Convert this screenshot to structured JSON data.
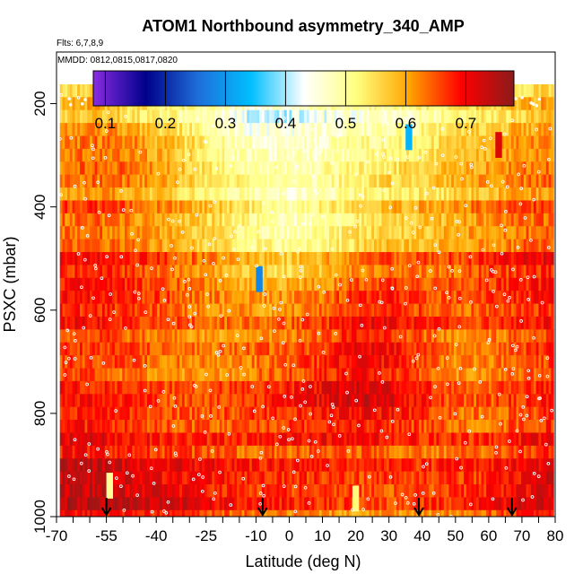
{
  "chart_data": {
    "type": "heatmap",
    "title": "ATOM1 Northbound asymmetry_340_AMP",
    "flights_label": "Flts: 6,7,8,9",
    "dates_label": "MMDD: 0812,0815,0817,0820",
    "xlabel": "Latitude (deg N)",
    "ylabel": "PSXC (mbar)",
    "xlim": [
      -70,
      80
    ],
    "ylim": [
      1000,
      100
    ],
    "x_tick_labels": [
      "-70",
      "-55",
      "-40",
      "-25",
      "-10",
      "0",
      "10",
      "20",
      "30",
      "40",
      "50",
      "60",
      "70",
      "80"
    ],
    "x_tick_values": [
      -70,
      -55,
      -40,
      -25,
      -10,
      0,
      10,
      20,
      30,
      40,
      50,
      60,
      70,
      80
    ],
    "x_minor_ticks": [
      -65,
      -60,
      -50,
      -45,
      -35,
      -30,
      -20,
      -15,
      -5,
      5,
      15,
      25,
      35,
      45,
      55,
      65,
      75
    ],
    "y_tick_labels": [
      "200",
      "400",
      "600",
      "800",
      "1000"
    ],
    "y_tick_values": [
      200,
      400,
      600,
      800,
      1000
    ],
    "colorbar": {
      "range": [
        0.08,
        0.78
      ],
      "tick_labels": [
        "0.1",
        "0.2",
        "0.3",
        "0.4",
        "0.5",
        "0.6",
        "0.7"
      ],
      "tick_values": [
        0.1,
        0.2,
        0.3,
        0.4,
        0.5,
        0.6,
        0.7
      ],
      "colors": [
        "#8a2be2",
        "#00008b",
        "#1e6fd9",
        "#00bfff",
        "#ffffff",
        "#ffff80",
        "#ffa500",
        "#ff0000",
        "#8b1a1a"
      ]
    },
    "arrows_latitude": [
      -55,
      -8,
      39,
      67
    ],
    "grid": false,
    "levels_mbar": [
      175,
      200,
      225,
      250,
      275,
      300,
      325,
      350,
      375,
      400,
      425,
      450,
      475,
      500,
      525,
      550,
      575,
      600,
      625,
      650,
      675,
      700,
      725,
      750,
      775,
      800,
      825,
      850,
      875,
      900,
      925,
      950,
      975,
      1000
    ],
    "lat_nodes": [
      -69,
      -60,
      -50,
      -40,
      -30,
      -20,
      -10,
      0,
      10,
      20,
      30,
      40,
      50,
      60,
      70,
      79
    ],
    "values_by_level": [
      [
        0.56,
        0.57,
        0.54,
        0.52,
        0.52,
        0.51,
        0.49,
        0.5,
        0.5,
        0.5,
        0.5,
        0.52,
        0.54,
        0.55,
        0.56,
        0.57
      ],
      [
        0.57,
        0.58,
        0.55,
        0.52,
        0.5,
        0.47,
        0.44,
        0.46,
        0.48,
        0.49,
        0.48,
        0.5,
        0.53,
        0.55,
        0.57,
        0.59
      ],
      [
        0.58,
        0.6,
        0.57,
        0.54,
        0.51,
        0.47,
        0.42,
        0.43,
        0.45,
        0.47,
        0.47,
        0.5,
        0.53,
        0.55,
        0.58,
        0.6
      ],
      [
        0.6,
        0.62,
        0.6,
        0.57,
        0.53,
        0.48,
        0.44,
        0.45,
        0.46,
        0.48,
        0.49,
        0.51,
        0.55,
        0.57,
        0.59,
        0.62
      ],
      [
        0.61,
        0.63,
        0.62,
        0.59,
        0.55,
        0.5,
        0.46,
        0.46,
        0.47,
        0.5,
        0.51,
        0.53,
        0.57,
        0.59,
        0.61,
        0.63
      ],
      [
        0.62,
        0.64,
        0.63,
        0.6,
        0.56,
        0.52,
        0.48,
        0.47,
        0.48,
        0.51,
        0.53,
        0.55,
        0.58,
        0.6,
        0.62,
        0.64
      ],
      [
        0.62,
        0.64,
        0.63,
        0.6,
        0.56,
        0.52,
        0.49,
        0.48,
        0.49,
        0.52,
        0.54,
        0.56,
        0.58,
        0.6,
        0.62,
        0.64
      ],
      [
        0.62,
        0.63,
        0.62,
        0.6,
        0.56,
        0.53,
        0.5,
        0.48,
        0.49,
        0.52,
        0.55,
        0.56,
        0.58,
        0.6,
        0.62,
        0.63
      ],
      [
        0.62,
        0.63,
        0.62,
        0.59,
        0.56,
        0.53,
        0.5,
        0.48,
        0.5,
        0.53,
        0.55,
        0.56,
        0.58,
        0.6,
        0.62,
        0.63
      ],
      [
        0.63,
        0.64,
        0.62,
        0.6,
        0.57,
        0.54,
        0.5,
        0.47,
        0.49,
        0.53,
        0.56,
        0.57,
        0.59,
        0.61,
        0.63,
        0.64
      ],
      [
        0.64,
        0.65,
        0.63,
        0.61,
        0.58,
        0.55,
        0.51,
        0.48,
        0.5,
        0.54,
        0.57,
        0.58,
        0.6,
        0.62,
        0.64,
        0.65
      ],
      [
        0.65,
        0.66,
        0.64,
        0.62,
        0.59,
        0.56,
        0.52,
        0.5,
        0.52,
        0.56,
        0.58,
        0.59,
        0.61,
        0.63,
        0.65,
        0.66
      ],
      [
        0.66,
        0.67,
        0.65,
        0.63,
        0.6,
        0.57,
        0.54,
        0.52,
        0.54,
        0.58,
        0.6,
        0.6,
        0.62,
        0.64,
        0.66,
        0.67
      ],
      [
        0.67,
        0.68,
        0.66,
        0.64,
        0.61,
        0.58,
        0.55,
        0.54,
        0.56,
        0.6,
        0.62,
        0.62,
        0.63,
        0.65,
        0.67,
        0.68
      ],
      [
        0.67,
        0.68,
        0.67,
        0.65,
        0.62,
        0.59,
        0.57,
        0.56,
        0.58,
        0.62,
        0.64,
        0.63,
        0.64,
        0.66,
        0.67,
        0.68
      ],
      [
        0.67,
        0.68,
        0.67,
        0.65,
        0.62,
        0.6,
        0.58,
        0.58,
        0.6,
        0.64,
        0.66,
        0.64,
        0.64,
        0.66,
        0.67,
        0.68
      ],
      [
        0.68,
        0.68,
        0.67,
        0.65,
        0.63,
        0.61,
        0.6,
        0.6,
        0.62,
        0.66,
        0.67,
        0.65,
        0.64,
        0.66,
        0.67,
        0.68
      ],
      [
        0.68,
        0.68,
        0.67,
        0.65,
        0.63,
        0.62,
        0.61,
        0.62,
        0.64,
        0.67,
        0.68,
        0.66,
        0.64,
        0.66,
        0.67,
        0.68
      ],
      [
        0.68,
        0.68,
        0.66,
        0.65,
        0.63,
        0.62,
        0.62,
        0.63,
        0.65,
        0.68,
        0.69,
        0.66,
        0.64,
        0.65,
        0.67,
        0.68
      ],
      [
        0.67,
        0.68,
        0.66,
        0.64,
        0.63,
        0.62,
        0.63,
        0.64,
        0.66,
        0.69,
        0.69,
        0.66,
        0.63,
        0.64,
        0.66,
        0.67
      ],
      [
        0.67,
        0.67,
        0.66,
        0.64,
        0.63,
        0.63,
        0.64,
        0.65,
        0.67,
        0.7,
        0.7,
        0.66,
        0.63,
        0.64,
        0.66,
        0.67
      ],
      [
        0.67,
        0.67,
        0.66,
        0.64,
        0.63,
        0.63,
        0.64,
        0.66,
        0.68,
        0.71,
        0.7,
        0.66,
        0.63,
        0.64,
        0.66,
        0.67
      ],
      [
        0.67,
        0.67,
        0.65,
        0.64,
        0.63,
        0.63,
        0.65,
        0.67,
        0.69,
        0.71,
        0.7,
        0.66,
        0.63,
        0.64,
        0.66,
        0.67
      ],
      [
        0.67,
        0.67,
        0.65,
        0.64,
        0.63,
        0.64,
        0.65,
        0.67,
        0.69,
        0.71,
        0.7,
        0.66,
        0.63,
        0.63,
        0.65,
        0.67
      ],
      [
        0.68,
        0.67,
        0.66,
        0.64,
        0.63,
        0.64,
        0.66,
        0.67,
        0.69,
        0.71,
        0.7,
        0.66,
        0.63,
        0.63,
        0.65,
        0.67
      ],
      [
        0.68,
        0.68,
        0.66,
        0.65,
        0.64,
        0.65,
        0.66,
        0.67,
        0.69,
        0.7,
        0.69,
        0.66,
        0.63,
        0.63,
        0.65,
        0.67
      ],
      [
        0.69,
        0.69,
        0.67,
        0.66,
        0.65,
        0.65,
        0.66,
        0.67,
        0.68,
        0.69,
        0.68,
        0.66,
        0.64,
        0.64,
        0.66,
        0.68
      ],
      [
        0.7,
        0.7,
        0.68,
        0.67,
        0.66,
        0.66,
        0.66,
        0.67,
        0.68,
        0.68,
        0.67,
        0.66,
        0.65,
        0.65,
        0.67,
        0.69
      ],
      [
        0.71,
        0.71,
        0.69,
        0.68,
        0.67,
        0.66,
        0.66,
        0.66,
        0.67,
        0.67,
        0.66,
        0.65,
        0.65,
        0.66,
        0.68,
        0.7
      ],
      [
        0.72,
        0.72,
        0.7,
        0.69,
        0.68,
        0.67,
        0.66,
        0.66,
        0.66,
        0.66,
        0.65,
        0.65,
        0.65,
        0.66,
        0.68,
        0.7
      ],
      [
        0.72,
        0.72,
        0.71,
        0.69,
        0.68,
        0.67,
        0.66,
        0.66,
        0.66,
        0.65,
        0.65,
        0.65,
        0.65,
        0.66,
        0.68,
        0.71
      ],
      [
        0.72,
        0.72,
        0.71,
        0.7,
        0.68,
        0.67,
        0.66,
        0.65,
        0.65,
        0.64,
        0.64,
        0.65,
        0.65,
        0.67,
        0.69,
        0.71
      ],
      [
        0.72,
        0.72,
        0.71,
        0.7,
        0.69,
        0.67,
        0.66,
        0.65,
        0.64,
        0.63,
        0.63,
        0.64,
        0.65,
        0.67,
        0.69,
        0.71
      ],
      [
        0.72,
        0.72,
        0.71,
        0.7,
        0.69,
        0.67,
        0.66,
        0.65,
        0.64,
        0.63,
        0.63,
        0.64,
        0.65,
        0.67,
        0.69,
        0.71
      ]
    ],
    "anomalies": [
      {
        "lat": -9,
        "pressure": 540,
        "value": 0.28
      },
      {
        "lat": 36,
        "pressure": 265,
        "value": 0.33
      },
      {
        "lat": -54,
        "pressure": 940,
        "value": 0.5
      },
      {
        "lat": 20,
        "pressure": 965,
        "value": 0.52
      },
      {
        "lat": 63,
        "pressure": 280,
        "value": 0.72
      }
    ]
  }
}
